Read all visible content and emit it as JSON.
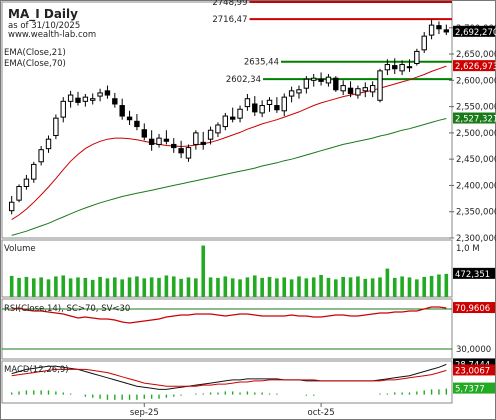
{
  "chart_data": [
    {
      "type": "candlestick",
      "title": "MA_I Daily",
      "subtitle": "as of 31/10/2025",
      "source": "www.wealth-lab.com",
      "x_labels": [
        "sep-25",
        "oct-25"
      ],
      "ylim": [
        2300000,
        2749000
      ],
      "y_ticks": [
        "2,700,000",
        "2,650,000",
        "2,600,000",
        "2,550,000",
        "2,500,000",
        "2,450,000",
        "2,400,000",
        "2,350,000",
        "2,300,000"
      ],
      "ohlc": [
        [
          2352000,
          2380000,
          2345000,
          2368000
        ],
        [
          2372000,
          2402000,
          2368000,
          2398000
        ],
        [
          2398000,
          2420000,
          2392000,
          2412000
        ],
        [
          2412000,
          2445000,
          2405000,
          2440000
        ],
        [
          2445000,
          2475000,
          2438000,
          2468000
        ],
        [
          2470000,
          2495000,
          2462000,
          2488000
        ],
        [
          2495000,
          2535000,
          2488000,
          2528000
        ],
        [
          2530000,
          2568000,
          2520000,
          2560000
        ],
        [
          2560000,
          2580000,
          2548000,
          2572000
        ],
        [
          2566000,
          2578000,
          2552000,
          2558000
        ],
        [
          2560000,
          2574000,
          2550000,
          2568000
        ],
        [
          2562000,
          2575000,
          2554000,
          2565000
        ],
        [
          2570000,
          2584000,
          2560000,
          2576000
        ],
        [
          2580000,
          2590000,
          2565000,
          2572000
        ],
        [
          2565000,
          2576000,
          2548000,
          2555000
        ],
        [
          2552000,
          2565000,
          2525000,
          2532000
        ],
        [
          2530000,
          2542000,
          2515000,
          2525000
        ],
        [
          2522000,
          2536000,
          2505000,
          2512000
        ],
        [
          2506000,
          2518000,
          2486000,
          2492000
        ],
        [
          2488000,
          2505000,
          2466000,
          2478000
        ],
        [
          2478000,
          2498000,
          2472000,
          2490000
        ],
        [
          2488000,
          2505000,
          2478000,
          2484000
        ],
        [
          2478000,
          2490000,
          2462000,
          2472000
        ],
        [
          2470000,
          2485000,
          2452000,
          2462000
        ],
        [
          2452000,
          2478000,
          2445000,
          2472000
        ],
        [
          2478000,
          2505000,
          2468000,
          2500000
        ],
        [
          2482000,
          2502000,
          2468000,
          2478000
        ],
        [
          2488000,
          2512000,
          2478000,
          2505000
        ],
        [
          2500000,
          2520000,
          2492000,
          2515000
        ],
        [
          2512000,
          2538000,
          2505000,
          2532000
        ],
        [
          2530000,
          2548000,
          2520000,
          2526000
        ],
        [
          2528000,
          2552000,
          2520000,
          2545000
        ],
        [
          2550000,
          2574000,
          2542000,
          2565000
        ],
        [
          2555000,
          2570000,
          2532000,
          2540000
        ],
        [
          2538000,
          2562000,
          2530000,
          2552000
        ],
        [
          2554000,
          2568000,
          2540000,
          2562000
        ],
        [
          2552000,
          2568000,
          2538000,
          2544000
        ],
        [
          2542000,
          2575000,
          2532000,
          2568000
        ],
        [
          2570000,
          2588000,
          2558000,
          2580000
        ],
        [
          2576000,
          2590000,
          2565000,
          2582000
        ],
        [
          2585000,
          2608000,
          2575000,
          2602000
        ],
        [
          2600000,
          2612000,
          2588000,
          2604000
        ],
        [
          2602000,
          2615000,
          2590000,
          2598000
        ],
        [
          2595000,
          2612000,
          2588000,
          2606000
        ],
        [
          2604000,
          2608000,
          2578000,
          2582000
        ],
        [
          2580000,
          2600000,
          2572000,
          2590000
        ],
        [
          2585000,
          2598000,
          2568000,
          2575000
        ],
        [
          2572000,
          2590000,
          2565000,
          2584000
        ],
        [
          2580000,
          2596000,
          2568000,
          2586000
        ],
        [
          2578000,
          2598000,
          2568000,
          2590000
        ],
        [
          2562000,
          2622000,
          2558000,
          2618000
        ],
        [
          2620000,
          2640000,
          2610000,
          2630000
        ],
        [
          2628000,
          2642000,
          2612000,
          2622000
        ],
        [
          2618000,
          2638000,
          2610000,
          2630000
        ],
        [
          2626000,
          2640000,
          2616000,
          2624000
        ],
        [
          2632000,
          2660000,
          2628000,
          2655000
        ],
        [
          2658000,
          2692000,
          2652000,
          2684000
        ],
        [
          2686000,
          2716000,
          2678000,
          2705000
        ],
        [
          2704000,
          2712000,
          2688000,
          2698000
        ],
        [
          2696000,
          2706000,
          2686000,
          2692000
        ]
      ],
      "price_levels": [
        {
          "label": "2748,99",
          "value": 2748990,
          "color": "#cc0000"
        },
        {
          "label": "2716,47",
          "value": 2716470,
          "color": "#cc0000"
        },
        {
          "label": "2635,44",
          "value": 2635440,
          "color": "#008000"
        },
        {
          "label": "2602,34",
          "value": 2602340,
          "color": "#008000"
        }
      ],
      "series": [
        {
          "name": "EMA(Close,21)",
          "color": "#cc0000",
          "values": [
            2335000,
            2344000,
            2355000,
            2368000,
            2382000,
            2397000,
            2413000,
            2430000,
            2446000,
            2459000,
            2470000,
            2478000,
            2484000,
            2488000,
            2490000,
            2490000,
            2489000,
            2487000,
            2484000,
            2481000,
            2478000,
            2476000,
            2475000,
            2474000,
            2475000,
            2477000,
            2479000,
            2482000,
            2486000,
            2491000,
            2496000,
            2501000,
            2507000,
            2512000,
            2517000,
            2521000,
            2525000,
            2530000,
            2535000,
            2540000,
            2546000,
            2552000,
            2557000,
            2561000,
            2565000,
            2569000,
            2572000,
            2575000,
            2578000,
            2581000,
            2585000,
            2589000,
            2593000,
            2597000,
            2601000,
            2606000,
            2611000,
            2617000,
            2622000,
            2626973
          ]
        },
        {
          "name": "EMA(Close,70)",
          "color": "#1a7a1a",
          "values": [
            2305000,
            2309000,
            2313000,
            2318000,
            2323000,
            2328000,
            2334000,
            2340000,
            2346000,
            2352000,
            2357000,
            2362000,
            2367000,
            2371000,
            2375000,
            2379000,
            2382000,
            2385000,
            2388000,
            2391000,
            2394000,
            2397000,
            2400000,
            2403000,
            2406000,
            2409000,
            2412000,
            2415000,
            2418000,
            2421000,
            2424000,
            2427000,
            2430000,
            2433000,
            2437000,
            2440000,
            2443000,
            2447000,
            2450000,
            2454000,
            2458000,
            2462000,
            2466000,
            2470000,
            2474000,
            2478000,
            2481000,
            2484000,
            2487000,
            2490000,
            2494000,
            2497000,
            2501000,
            2505000,
            2508000,
            2512000,
            2516000,
            2520000,
            2524000,
            2527321
          ]
        }
      ],
      "last_price": "2,692,270",
      "last_values": [
        "2,626,973",
        "2,527,321"
      ]
    },
    {
      "type": "bar",
      "title": "Volume",
      "ylim": [
        0,
        1000000
      ],
      "y_ticks": [
        "1,0 M",
        "500,0 K"
      ],
      "values": [
        430000,
        390000,
        410000,
        380000,
        400000,
        360000,
        420000,
        440000,
        380000,
        400000,
        390000,
        350000,
        410000,
        380000,
        400000,
        360000,
        400000,
        420000,
        380000,
        400000,
        390000,
        440000,
        420000,
        370000,
        400000,
        380000,
        1050000,
        400000,
        390000,
        420000,
        380000,
        360000,
        400000,
        440000,
        390000,
        410000,
        380000,
        400000,
        360000,
        420000,
        380000,
        400000,
        450000,
        390000,
        360000,
        410000,
        400000,
        420000,
        370000,
        380000,
        400000,
        580000,
        390000,
        420000,
        400000,
        360000,
        410000,
        430000,
        460000,
        472351
      ],
      "last_value": "472,351"
    },
    {
      "type": "line",
      "title": "RSI(Close,14), SC>70, SV<30",
      "ylim": [
        20,
        80
      ],
      "y_ticks": [
        "30,0000"
      ],
      "thresholds": [
        70,
        30
      ],
      "series": [
        {
          "name": "RSI(Close,14)",
          "color": "#cc0000",
          "values": [
            70,
            71,
            69,
            68,
            68,
            67,
            66,
            65,
            63,
            61,
            62,
            61,
            60,
            60,
            59,
            57,
            56,
            57,
            58,
            59,
            60,
            62,
            63,
            64,
            64,
            65,
            65,
            65,
            64,
            63,
            64,
            65,
            65,
            64,
            63,
            63,
            63,
            63,
            64,
            63,
            63,
            62,
            62,
            63,
            64,
            64,
            63,
            63,
            64,
            65,
            66,
            66,
            67,
            67,
            68,
            68,
            70,
            72,
            72,
            70.9606
          ]
        }
      ],
      "last_value": "70,9606"
    },
    {
      "type": "line",
      "title": "MACD(12,26,9)",
      "series": [
        {
          "name": "MACD(12,26,9)",
          "color": "#111111",
          "values": [
            20,
            22,
            24,
            25,
            26,
            27,
            27,
            26,
            25,
            24,
            22,
            20,
            18,
            16,
            14,
            12,
            10,
            8,
            7,
            6,
            5,
            5,
            6,
            7,
            8,
            9,
            10,
            11,
            12,
            13,
            14,
            14,
            15,
            15,
            15,
            15,
            15,
            14,
            14,
            14,
            13,
            13,
            13,
            13,
            13,
            13,
            13,
            13,
            13,
            13,
            14,
            15,
            16,
            17,
            18,
            20,
            22,
            24,
            26,
            28.7444
          ]
        },
        {
          "name": "Signal",
          "color": "#cc0000",
          "values": [
            18,
            19,
            20,
            21,
            22,
            23,
            24,
            24,
            24,
            24,
            24,
            23,
            22,
            21,
            19,
            17,
            15,
            13,
            11,
            10,
            9,
            8,
            8,
            8,
            8,
            8,
            9,
            9,
            10,
            10,
            11,
            12,
            12,
            13,
            13,
            14,
            14,
            14,
            14,
            14,
            14,
            14,
            13,
            13,
            13,
            13,
            13,
            13,
            13,
            13,
            13,
            14,
            14,
            15,
            16,
            17,
            18,
            19,
            21,
            23.0067
          ]
        }
      ],
      "histogram": [
        2,
        3,
        4,
        4,
        4,
        4,
        3,
        2,
        1,
        0,
        -2,
        -3,
        -4,
        -5,
        -5,
        -5,
        -5,
        -5,
        -4,
        -4,
        -4,
        -3,
        -2,
        -1,
        0,
        1,
        1,
        2,
        2,
        3,
        3,
        2,
        3,
        2,
        2,
        1,
        1,
        0,
        0,
        0,
        -1,
        -1,
        0,
        0,
        0,
        0,
        0,
        0,
        0,
        0,
        1,
        1,
        2,
        2,
        2,
        3,
        4,
        5,
        5,
        5.7377
      ],
      "last_values": [
        "28,7444",
        "23,0067",
        "5,7377"
      ]
    }
  ]
}
